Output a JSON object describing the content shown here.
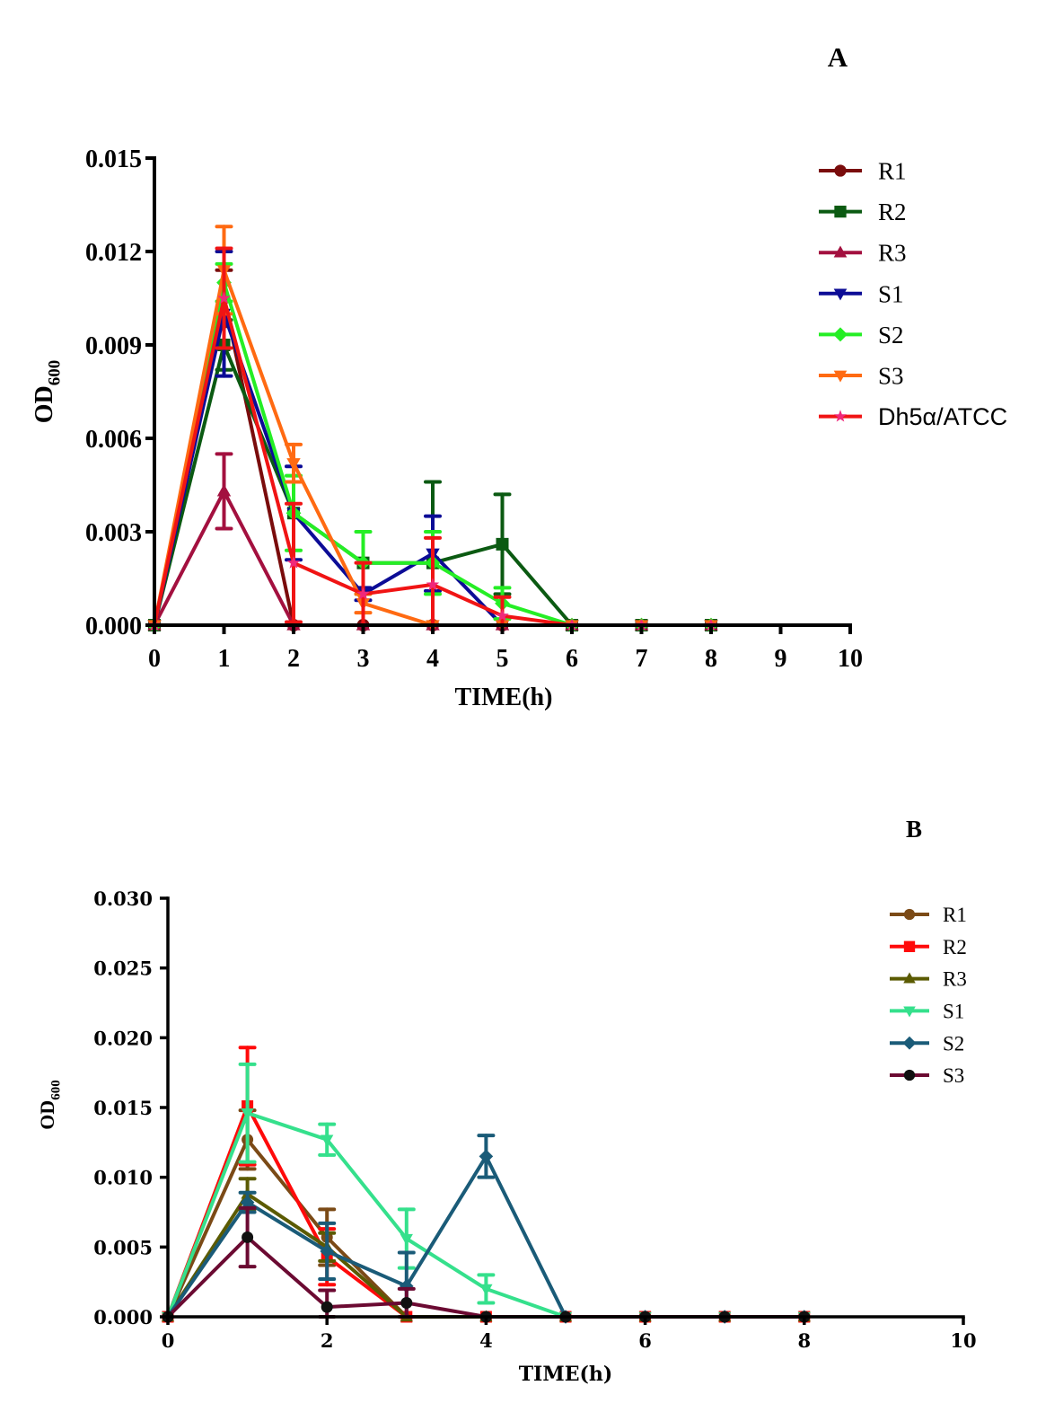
{
  "chart_data": [
    {
      "panel_label": "A",
      "type": "line",
      "title": "",
      "xlabel": "TIME(h)",
      "ylabel": "OD600",
      "ylabel_parts": [
        "OD",
        "600"
      ],
      "xlim": [
        0,
        10
      ],
      "ylim": [
        0,
        0.015
      ],
      "xticks": [
        "0",
        "1",
        "2",
        "3",
        "4",
        "5",
        "6",
        "7",
        "8",
        "9",
        "10"
      ],
      "xtick_values": [
        0,
        1,
        2,
        3,
        4,
        5,
        6,
        7,
        8,
        9,
        10
      ],
      "yticks": [
        "0.000",
        "0.003",
        "0.006",
        "0.009",
        "0.012",
        "0.015"
      ],
      "ytick_values": [
        0,
        0.003,
        0.006,
        0.009,
        0.012,
        0.015
      ],
      "grid": false,
      "legend_position": "right",
      "x": [
        0,
        1,
        2,
        3,
        4,
        5,
        6,
        7,
        8
      ],
      "series": [
        {
          "name": "R1",
          "color": "#7a0c0c",
          "marker": "circle",
          "values": [
            0,
            0.0105,
            0,
            0,
            0,
            0,
            0,
            0,
            0
          ],
          "errors": [
            0,
            0.0009,
            0,
            0,
            0,
            0,
            0,
            0,
            0
          ]
        },
        {
          "name": "R2",
          "color": "#0b5a12",
          "marker": "square",
          "values": [
            0,
            0.009,
            0.0036,
            0.002,
            0.002,
            0.0026,
            0,
            0,
            0
          ],
          "errors": [
            0,
            0.0008,
            0,
            0,
            0.0026,
            0.0016,
            0,
            0,
            0
          ]
        },
        {
          "name": "R3",
          "color": "#a3103f",
          "marker": "triangle-up",
          "values": [
            0,
            0.0043,
            0,
            0,
            0,
            0,
            0,
            0,
            0
          ],
          "errors": [
            0,
            0.0012,
            0,
            0,
            0,
            0,
            0,
            0,
            0
          ]
        },
        {
          "name": "S1",
          "color": "#0c0c96",
          "marker": "triangle-down",
          "values": [
            0,
            0.01,
            0.0036,
            0.001,
            0.0023,
            0,
            0,
            0,
            0
          ],
          "errors": [
            0,
            0.002,
            0.0015,
            0.0002,
            0.0012,
            0,
            0,
            0,
            0
          ]
        },
        {
          "name": "S2",
          "color": "#25ee25",
          "marker": "diamond",
          "values": [
            0,
            0.011,
            0.0036,
            0.002,
            0.002,
            0.0007,
            0,
            0,
            0
          ],
          "errors": [
            0,
            0.0006,
            0.0012,
            0.001,
            0.001,
            0.0005,
            0,
            0,
            0
          ]
        },
        {
          "name": "S3",
          "color": "#ff6a12",
          "marker": "triangle-down",
          "values": [
            0,
            0.0114,
            0.0052,
            0.0007,
            0,
            0,
            0,
            0,
            0
          ],
          "errors": [
            0,
            0.0014,
            0.0006,
            0.0003,
            0,
            0,
            0,
            0,
            0
          ]
        },
        {
          "name": "Dh5α/ATCC",
          "color": "#f01414",
          "marker": "star",
          "marker_color": "#f0287a",
          "values": [
            0,
            0.0105,
            0.002,
            0.001,
            0.0013,
            0.0003,
            0,
            0,
            0
          ],
          "errors": [
            0,
            0.0016,
            0.0019,
            0.001,
            0.0015,
            0.0006,
            0,
            0,
            0
          ]
        }
      ]
    },
    {
      "panel_label": "B",
      "type": "line",
      "title": "",
      "xlabel": "TIME(h)",
      "ylabel": "OD600",
      "ylabel_parts": [
        "OD",
        "600"
      ],
      "xlim": [
        0,
        10
      ],
      "ylim": [
        0,
        0.03
      ],
      "xticks": [
        "0",
        "2",
        "4",
        "6",
        "8",
        "10"
      ],
      "xtick_values": [
        0,
        2,
        4,
        6,
        8,
        10
      ],
      "yticks": [
        "0.000",
        "0.005",
        "0.010",
        "0.015",
        "0.020",
        "0.025",
        "0.030"
      ],
      "ytick_values": [
        0,
        0.005,
        0.01,
        0.015,
        0.02,
        0.025,
        0.03
      ],
      "grid": false,
      "legend_position": "top-right",
      "x": [
        0,
        1,
        2,
        3,
        4,
        5,
        6,
        7,
        8
      ],
      "series": [
        {
          "name": "R1",
          "color": "#7b4a16",
          "marker": "circle",
          "values": [
            0,
            0.0127,
            0.0057,
            0,
            0,
            0,
            0,
            0,
            0
          ],
          "errors": [
            0,
            0.0021,
            0.002,
            0,
            0,
            0,
            0,
            0,
            0
          ]
        },
        {
          "name": "R2",
          "color": "#ff0a0a",
          "marker": "square",
          "values": [
            0,
            0.0151,
            0.0043,
            0,
            0,
            0,
            0,
            0,
            0
          ],
          "errors": [
            0,
            0.0042,
            0.002,
            0,
            0,
            0,
            0,
            0,
            0
          ]
        },
        {
          "name": "R3",
          "color": "#5b5b02",
          "marker": "triangle-up",
          "values": [
            0,
            0.0088,
            0.005,
            0,
            0,
            0,
            0,
            0,
            0
          ],
          "errors": [
            0,
            0.0011,
            0.001,
            0,
            0,
            0,
            0,
            0,
            0
          ]
        },
        {
          "name": "S1",
          "color": "#35e08c",
          "marker": "triangle-down",
          "values": [
            0,
            0.0146,
            0.0127,
            0.0056,
            0.002,
            0,
            0,
            0,
            0
          ],
          "errors": [
            0,
            0.0035,
            0.0011,
            0.0021,
            0.001,
            0,
            0,
            0,
            0
          ]
        },
        {
          "name": "S2",
          "color": "#1a5b78",
          "marker": "diamond",
          "values": [
            0,
            0.0082,
            0.0047,
            0.0022,
            0.0115,
            0,
            0,
            0,
            0
          ],
          "errors": [
            0,
            0.0007,
            0.002,
            0.0024,
            0.0015,
            0,
            0,
            0,
            0
          ]
        },
        {
          "name": "S3",
          "color": "#6b0a32",
          "marker": "circle",
          "marker_color": "#111111",
          "values": [
            0,
            0.0057,
            0.0007,
            0.001,
            0,
            0,
            0,
            0,
            0
          ],
          "errors": [
            0,
            0.0021,
            0.0012,
            0.001,
            0,
            0,
            0,
            0,
            0
          ]
        }
      ]
    }
  ]
}
